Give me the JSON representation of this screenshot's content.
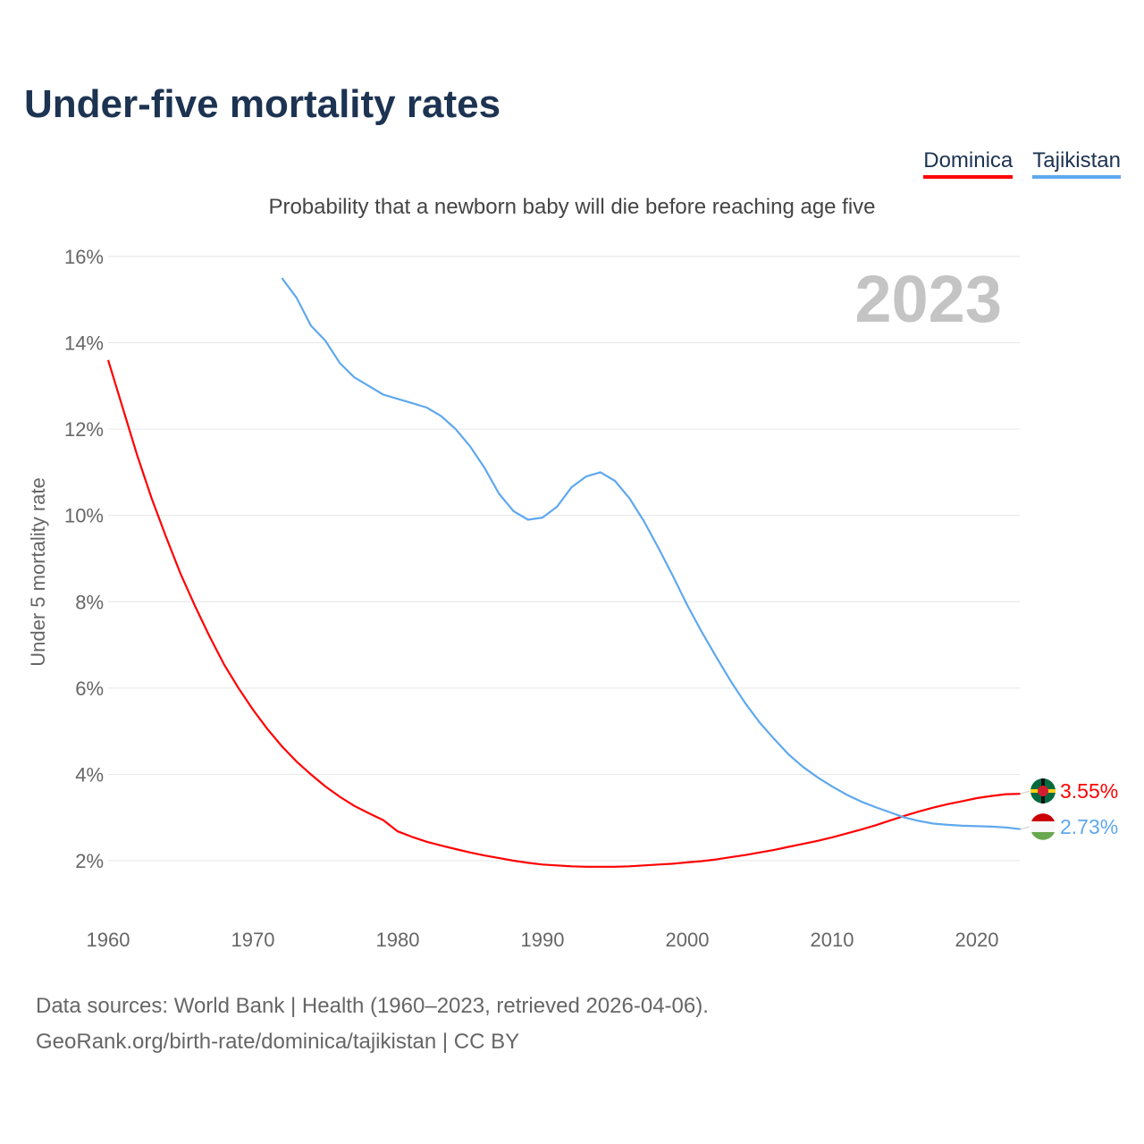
{
  "title": "Under-five mortality rates",
  "subtitle": "Probability that a newborn baby will die before reaching age five",
  "footer": {
    "line1": "Data sources: World Bank | Health (1960–2023, retrieved 2026-04-06).",
    "line2": "GeoRank.org/birth-rate/dominica/tajikistan | CC BY"
  },
  "chart_data": {
    "type": "line",
    "title": "Under-five mortality rates",
    "ylabel": "Under 5 mortality rate",
    "xlabel": "",
    "year_label": "2023",
    "xlim": [
      1960,
      2023
    ],
    "ylim": [
      1,
      16.5
    ],
    "xticks": [
      1960,
      1970,
      1980,
      1990,
      2000,
      2010,
      2020
    ],
    "yticks": [
      {
        "v": 2,
        "label": "2%"
      },
      {
        "v": 4,
        "label": "4%"
      },
      {
        "v": 6,
        "label": "6%"
      },
      {
        "v": 8,
        "label": "8%"
      },
      {
        "v": 10,
        "label": "10%"
      },
      {
        "v": 12,
        "label": "12%"
      },
      {
        "v": 14,
        "label": "14%"
      },
      {
        "v": 16,
        "label": "16%"
      }
    ],
    "legend_position": "top-right",
    "series": [
      {
        "name": "Dominica",
        "color": "#ff0000",
        "end_label": "3.55%",
        "start": 1960,
        "values": [
          13.6,
          12.5,
          11.4,
          10.4,
          9.5,
          8.65,
          7.9,
          7.2,
          6.55,
          6.0,
          5.5,
          5.05,
          4.65,
          4.3,
          4.0,
          3.72,
          3.48,
          3.27,
          3.1,
          2.94,
          2.68,
          2.55,
          2.44,
          2.35,
          2.27,
          2.19,
          2.12,
          2.06,
          2.0,
          1.95,
          1.91,
          1.89,
          1.87,
          1.86,
          1.86,
          1.86,
          1.87,
          1.89,
          1.91,
          1.93,
          1.96,
          1.99,
          2.03,
          2.08,
          2.13,
          2.19,
          2.25,
          2.32,
          2.39,
          2.46,
          2.54,
          2.63,
          2.72,
          2.82,
          2.93,
          3.04,
          3.14,
          3.23,
          3.31,
          3.38,
          3.45,
          3.5,
          3.54,
          3.55
        ]
      },
      {
        "name": "Tajikistan",
        "color": "#5fa8ee",
        "end_label": "2.73%",
        "start": 1972,
        "values": [
          15.5,
          15.05,
          14.4,
          14.05,
          13.53,
          13.2,
          13.0,
          12.8,
          12.7,
          12.6,
          12.5,
          12.3,
          12.0,
          11.6,
          11.1,
          10.5,
          10.1,
          9.9,
          9.95,
          10.2,
          10.65,
          10.9,
          11.0,
          10.8,
          10.4,
          9.87,
          9.25,
          8.6,
          7.92,
          7.3,
          6.72,
          6.16,
          5.65,
          5.2,
          4.82,
          4.46,
          4.17,
          3.93,
          3.72,
          3.53,
          3.37,
          3.24,
          3.12,
          3.0,
          2.92,
          2.86,
          2.83,
          2.81,
          2.8,
          2.79,
          2.77,
          2.73
        ]
      }
    ]
  }
}
